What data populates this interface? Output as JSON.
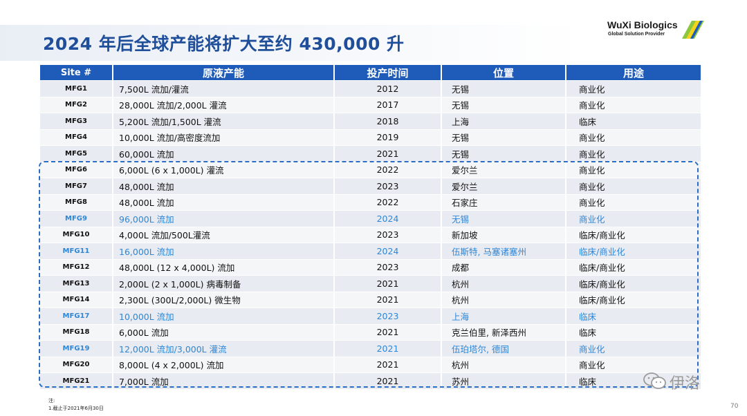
{
  "title": "2024 年后全球产能将扩大至约 430,000 升",
  "logo": {
    "name": "WuXi Biologics",
    "tagline": "Global Solution Provider"
  },
  "table": {
    "headers": [
      "Site #",
      "原液产能",
      "投产时间",
      "位置",
      "用途"
    ],
    "rows": [
      {
        "site": "MFG1",
        "capacity": "7,500L 流加/灌流",
        "year": "2012",
        "location": "无锡",
        "use": "商业化",
        "highlight": false
      },
      {
        "site": "MFG2",
        "capacity": "28,000L 流加/2,000L 灌流",
        "year": "2017",
        "location": "无锡",
        "use": "商业化",
        "highlight": false
      },
      {
        "site": "MFG3",
        "capacity": "5,200L 流加/1,500L 灌流",
        "year": "2018",
        "location": "上海",
        "use": "临床",
        "highlight": false
      },
      {
        "site": "MFG4",
        "capacity": "10,000L 流加/高密度流加",
        "year": "2019",
        "location": "无锡",
        "use": "商业化",
        "highlight": false
      },
      {
        "site": "MFG5",
        "capacity": "60,000L 流加",
        "year": "2021",
        "location": "无锡",
        "use": "商业化",
        "highlight": false
      },
      {
        "site": "MFG6",
        "capacity": "6,000L (6 x 1,000L) 灌流",
        "year": "2022",
        "location": "爱尔兰",
        "use": "商业化",
        "highlight": false
      },
      {
        "site": "MFG7",
        "capacity": "48,000L 流加",
        "year": "2023",
        "location": "爱尔兰",
        "use": "商业化",
        "highlight": false
      },
      {
        "site": "MFG8",
        "capacity": "48,000L 流加",
        "year": "2022",
        "location": "石家庄",
        "use": "商业化",
        "highlight": false
      },
      {
        "site": "MFG9",
        "capacity": "96,000L 流加",
        "year": "2024",
        "location": "无锡",
        "use": "商业化",
        "highlight": true
      },
      {
        "site": "MFG10",
        "capacity": "4,000L 流加/500L灌流",
        "year": "2023",
        "location": "新加坡",
        "use": "临床/商业化",
        "highlight": false
      },
      {
        "site": "MFG11",
        "capacity": "16,000L 流加",
        "year": "2024",
        "location": "伍斯特, 马塞诸塞州",
        "use": "临床/商业化",
        "highlight": true
      },
      {
        "site": "MFG12",
        "capacity": "48,000L (12 x 4,000L) 流加",
        "year": "2023",
        "location": "成都",
        "use": "临床/商业化",
        "highlight": false
      },
      {
        "site": "MFG13",
        "capacity": "2,000L (2 x 1,000L) 病毒制备",
        "year": "2021",
        "location": "杭州",
        "use": "临床/商业化",
        "highlight": false
      },
      {
        "site": "MFG14",
        "capacity": "2,300L (300L/2,000L) 微生物",
        "year": "2021",
        "location": "杭州",
        "use": "临床/商业化",
        "highlight": false
      },
      {
        "site": "MFG17",
        "capacity": "10,000L 流加",
        "year": "2023",
        "location": "上海",
        "use": "临床",
        "highlight": true
      },
      {
        "site": "MFG18",
        "capacity": "6,000L 流加",
        "year": "2021",
        "location": "克兰伯里, 新泽西州",
        "use": "临床",
        "highlight": false
      },
      {
        "site": "MFG19",
        "capacity": "12,000L 流加/3,000L 灌流",
        "year": "2021",
        "location": "伍珀塔尔, 德国",
        "use": "商业化",
        "highlight": true
      },
      {
        "site": "MFG20",
        "capacity": "8,000L (4 x 2,000L) 流加",
        "year": "2021",
        "location": "杭州",
        "use": "商业化",
        "highlight": false
      },
      {
        "site": "MFG21",
        "capacity": "7,000L 流加",
        "year": "2021",
        "location": "苏州",
        "use": "临床",
        "highlight": false
      }
    ]
  },
  "footnote": {
    "label": "注:",
    "text": "1.截止于2021年6月30日"
  },
  "page_number": "70",
  "watermark": {
    "icon": "wechat-icon",
    "text": "伊洛"
  },
  "colors": {
    "header_bg": "#1f5bb8",
    "title": "#1f4e9a",
    "highlight_text": "#2f86d6",
    "dashed_box": "#2b6cc4"
  }
}
